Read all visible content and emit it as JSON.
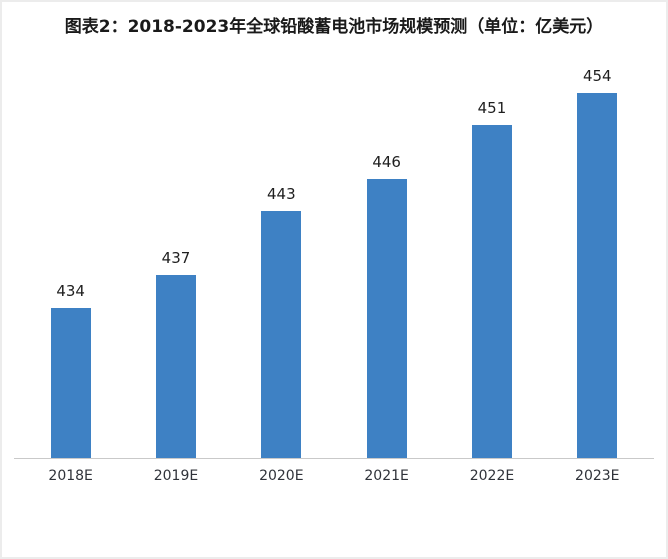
{
  "chart_data": {
    "type": "bar",
    "title": "图表2：2018-2023年全球铅酸蓄电池市场规模预测（单位：亿美元）",
    "categories": [
      "2018E",
      "2019E",
      "2020E",
      "2021E",
      "2022E",
      "2023E"
    ],
    "values": [
      434,
      437,
      443,
      446,
      451,
      454
    ],
    "xlabel": "",
    "ylabel": "",
    "ylim": [
      420,
      458
    ],
    "grid": false,
    "legend": "none",
    "bar_color": "#3e81c4",
    "value_labels_shown": true,
    "axis_baseline_color": "#c9c9c9"
  }
}
